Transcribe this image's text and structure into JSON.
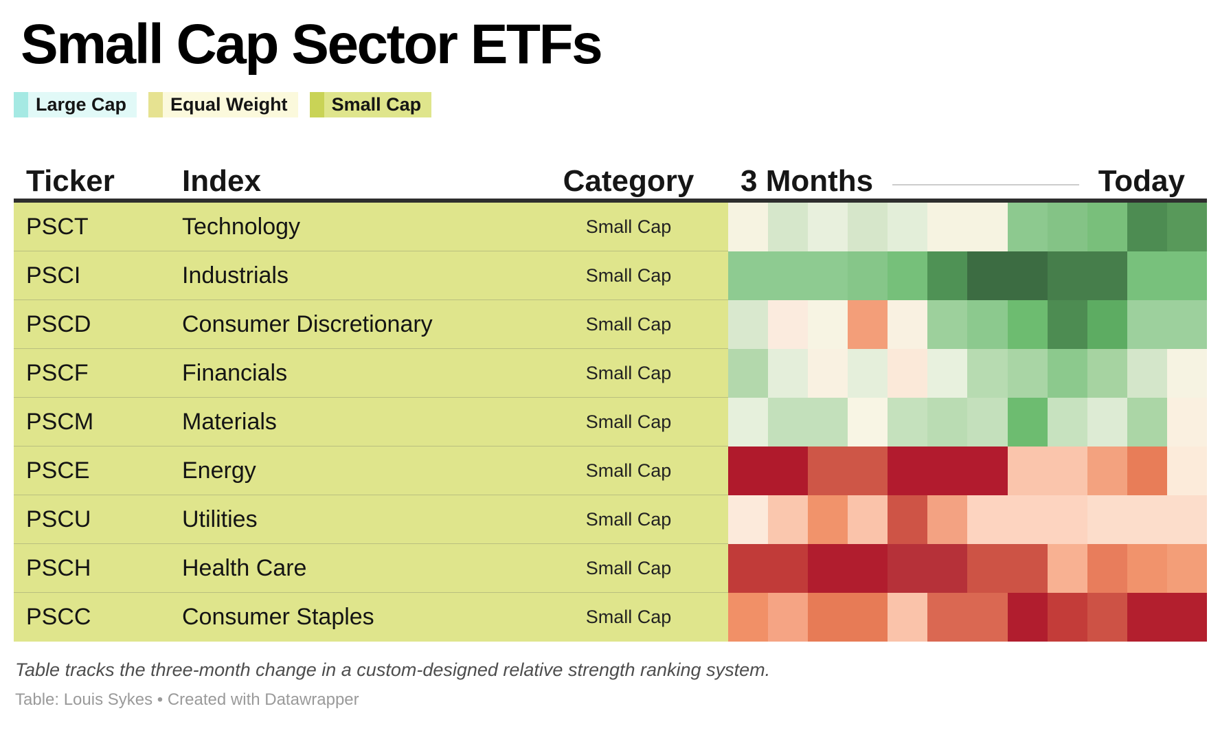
{
  "title": "Small Cap Sector ETFs",
  "legend": {
    "items": [
      {
        "label": "Large Cap",
        "swatch": "#a5e9e3",
        "bg": "#e1f9f7"
      },
      {
        "label": "Equal Weight",
        "swatch": "#e6e291",
        "bg": "#fbf9dc"
      },
      {
        "label": "Small Cap",
        "swatch": "#c9d356",
        "bg": "#dfe58c"
      }
    ]
  },
  "header": {
    "ticker": "Ticker",
    "index": "Index",
    "category": "Category",
    "period_start": "3 Months",
    "period_end": "Today"
  },
  "colors": {
    "row_background": "#dfe58c",
    "row_separator": "#b9bf7f",
    "header_rule": "#2e2e2e",
    "period_line": "#cccccc"
  },
  "chart_data": {
    "type": "heatmap",
    "title": "Small Cap Sector ETFs",
    "x_axis": {
      "left_label": "3 Months",
      "right_label": "Today",
      "columns": 12
    },
    "value_encoding": "color only (green = relative strength gain, red = loss); no numeric labels shown",
    "rows": [
      {
        "ticker": "PSCT",
        "index": "Technology",
        "category": "Small Cap",
        "cells": [
          "#f6f3e1",
          "#d6e7cb",
          "#e8f0dd",
          "#d6e6ca",
          "#e3eed9",
          "#f6f3e1",
          "#f6f3e1",
          "#8dc98f",
          "#84c386",
          "#79bf7b",
          "#4d8c52",
          "#58995a"
        ]
      },
      {
        "ticker": "PSCI",
        "index": "Industrials",
        "category": "Small Cap",
        "cells": [
          "#8ecb91",
          "#8ecb91",
          "#8ecb91",
          "#86c689",
          "#76c07a",
          "#4f9255",
          "#3c6c42",
          "#3c6c42",
          "#467e4b",
          "#467e4b",
          "#78c17c",
          "#78c17c"
        ]
      },
      {
        "ticker": "PSCD",
        "index": "Consumer Discretionary",
        "category": "Small Cap",
        "cells": [
          "#d9e8ce",
          "#fbebde",
          "#f7f4e3",
          "#f39e79",
          "#f9f1e1",
          "#9dd09c",
          "#8cc98e",
          "#6dbc70",
          "#4d8c52",
          "#5dac62",
          "#9dd09d",
          "#9dd09d"
        ]
      },
      {
        "ticker": "PSCF",
        "index": "Financials",
        "category": "Small Cap",
        "cells": [
          "#b3d8ac",
          "#e4eeda",
          "#f9f1e1",
          "#e5efdb",
          "#fbe9d9",
          "#e8f1de",
          "#b7dbb1",
          "#a9d5a5",
          "#8cc98d",
          "#a6d3a1",
          "#d4e6ca",
          "#f6f3e2"
        ]
      },
      {
        "ticker": "PSCM",
        "index": "Materials",
        "category": "Small Cap",
        "cells": [
          "#e6f0dc",
          "#c3e0bb",
          "#c3e0bb",
          "#f8f5e4",
          "#c5e1bd",
          "#badcb3",
          "#c4e0bc",
          "#6dbc70",
          "#c7e2bf",
          "#ddebd4",
          "#abd6a6",
          "#faf0e0"
        ]
      },
      {
        "ticker": "PSCE",
        "index": "Energy",
        "category": "Small Cap",
        "cells": [
          "#b01a2c",
          "#b01a2c",
          "#ce5647",
          "#ce5647",
          "#b21b2e",
          "#b21b2e",
          "#b21b2e",
          "#fac5ac",
          "#fac5ac",
          "#f3a27f",
          "#e87d58",
          "#fcebda"
        ]
      },
      {
        "ticker": "PSCU",
        "index": "Utilities",
        "category": "Small Cap",
        "cells": [
          "#fceadb",
          "#fac7ae",
          "#f1936b",
          "#fac3aa",
          "#ce5446",
          "#f3a282",
          "#fdd4c0",
          "#fdd4c0",
          "#fdd4c0",
          "#fcddcb",
          "#fcddcb",
          "#fcddcb"
        ]
      },
      {
        "ticker": "PSCH",
        "index": "Health Care",
        "category": "Small Cap",
        "cells": [
          "#c13b39",
          "#c13b39",
          "#b11d2e",
          "#b11d2e",
          "#b63139",
          "#b63139",
          "#cd5345",
          "#cd5345",
          "#f8b192",
          "#e87d5c",
          "#f1936c",
          "#f39e78"
        ]
      },
      {
        "ticker": "PSCC",
        "index": "Consumer Staples",
        "category": "Small Cap",
        "cells": [
          "#f19067",
          "#f5a484",
          "#e77b56",
          "#e77b56",
          "#fac3aa",
          "#da6852",
          "#da6852",
          "#b11d2e",
          "#c33c39",
          "#cd5245",
          "#b31f2e",
          "#b31f2e"
        ]
      }
    ]
  },
  "footer": {
    "note": "Table tracks the three-month change in a custom-designed relative strength ranking system.",
    "credit": "Table: Louis Sykes • Created with Datawrapper"
  }
}
